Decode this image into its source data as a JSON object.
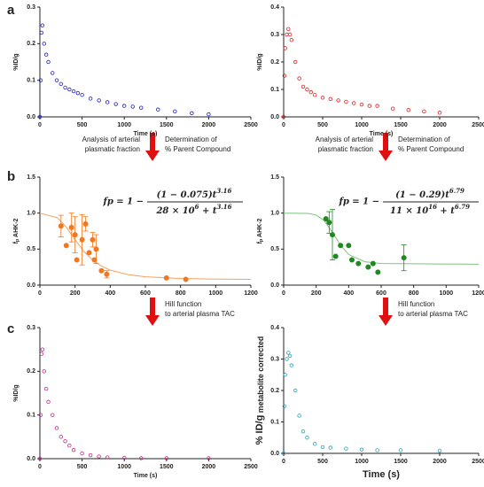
{
  "panel_labels": [
    "a",
    "b",
    "c"
  ],
  "arrows": [
    {
      "left": [
        "Analysis of arterial",
        "plasmatic fraction"
      ],
      "right": [
        "Determination of",
        "% Parent Compound"
      ]
    },
    {
      "left": [
        "Analysis of arterial",
        "plasmatic fraction"
      ],
      "right": [
        "Determination of",
        "% Parent Compound"
      ]
    },
    {
      "right": [
        "Hill function",
        "to arterial plasma TAC"
      ]
    },
    {
      "right": [
        "Hill function",
        "to arterial plasma TAC"
      ]
    }
  ],
  "chart_data": [
    {
      "type": "scatter",
      "xlabel": "Time (s)",
      "ylabel": "%ID/g",
      "xlim": [
        0,
        2500
      ],
      "xticks": [
        0,
        500,
        1000,
        1500,
        2000,
        2500
      ],
      "ylim": [
        0,
        0.3
      ],
      "yticks": [
        {
          "value": 0,
          "label": "0.0"
        },
        0.1,
        0.2,
        0.3
      ],
      "series": [
        {
          "color": "#1f1fbf",
          "marker": "open",
          "kind": "points",
          "x": [
            0,
            10,
            20,
            30,
            50,
            75,
            100,
            150,
            200,
            250,
            300,
            350,
            400,
            450,
            500,
            600,
            700,
            800,
            900,
            1000,
            1100,
            1200,
            1400,
            1600,
            1800,
            2000
          ],
          "values": [
            0,
            0.1,
            0.23,
            0.25,
            0.2,
            0.17,
            0.15,
            0.12,
            0.1,
            0.09,
            0.08,
            0.075,
            0.07,
            0.065,
            0.06,
            0.05,
            0.045,
            0.04,
            0.035,
            0.03,
            0.028,
            0.025,
            0.02,
            0.015,
            0.01,
            0.007
          ]
        }
      ]
    },
    {
      "type": "scatter",
      "xlabel": "Time (s)",
      "ylabel": "%ID/g",
      "xlim": [
        0,
        2500
      ],
      "xticks": [
        0,
        500,
        1000,
        1500,
        2000,
        2500
      ],
      "ylim": [
        0,
        0.4
      ],
      "yticks": [
        {
          "value": 0,
          "label": "0.0"
        },
        0.1,
        0.2,
        0.3,
        0.4
      ],
      "series": [
        {
          "color": "#e02020",
          "marker": "open",
          "kind": "points",
          "x": [
            0,
            10,
            20,
            40,
            60,
            80,
            100,
            150,
            200,
            250,
            300,
            350,
            400,
            500,
            600,
            700,
            800,
            900,
            1000,
            1100,
            1200,
            1400,
            1600,
            1800,
            2000
          ],
          "values": [
            0,
            0.15,
            0.25,
            0.3,
            0.32,
            0.3,
            0.28,
            0.2,
            0.14,
            0.11,
            0.1,
            0.09,
            0.08,
            0.07,
            0.065,
            0.06,
            0.055,
            0.05,
            0.045,
            0.04,
            0.04,
            0.03,
            0.025,
            0.02,
            0.015
          ]
        }
      ]
    },
    {
      "type": "scatter",
      "ylabel": [
        {
          "text": "f"
        },
        {
          "text": "p",
          "sub": true
        },
        {
          "text": " AHK-2"
        }
      ],
      "xlim": [
        0,
        1200
      ],
      "xticks": [
        0,
        200,
        400,
        600,
        800,
        1000,
        1200
      ],
      "ylim": [
        0,
        1.5
      ],
      "yticks": [
        {
          "value": 0,
          "label": "0.0"
        },
        0.5,
        {
          "value": 1,
          "label": "1.0"
        },
        1.5
      ],
      "formula": {
        "lhs": "fp = 1 −",
        "numerator": [
          {
            "text": "(1 − 0.075)t"
          },
          {
            "text": "3.16",
            "sup": true
          }
        ],
        "denominator": [
          {
            "text": "28 × 10"
          },
          {
            "text": "6",
            "sup": true
          },
          {
            "text": " + t"
          },
          {
            "text": "3.16",
            "sup": true
          }
        ]
      },
      "series": [
        {
          "color": "#f5a05a",
          "kind": "line",
          "x": [
            0,
            100,
            150,
            200,
            250,
            300,
            350,
            400,
            500,
            600,
            800,
            1000,
            1200
          ],
          "values": [
            1,
            0.936,
            0.805,
            0.63,
            0.469,
            0.347,
            0.264,
            0.208,
            0.146,
            0.116,
            0.092,
            0.083,
            0.08
          ]
        },
        {
          "color": "#f07820",
          "marker": "filled",
          "kind": "points",
          "x": [
            120,
            150,
            180,
            200,
            210,
            240,
            260,
            280,
            300,
            310,
            320,
            350,
            380,
            720,
            830
          ],
          "values": [
            0.82,
            0.55,
            0.8,
            0.7,
            0.35,
            0.63,
            0.85,
            0.45,
            0.63,
            0.35,
            0.5,
            0.2,
            0.15,
            0.1,
            0.08
          ],
          "errors": [
            0.15,
            null,
            0.2,
            0.25,
            null,
            0.35,
            0.1,
            null,
            0.1,
            null,
            0.2,
            null,
            0.05,
            null,
            null
          ]
        }
      ]
    },
    {
      "type": "scatter",
      "ylabel": [
        {
          "text": "f"
        },
        {
          "text": "p",
          "sub": true
        },
        {
          "text": " AHK-2"
        }
      ],
      "xlim": [
        0,
        1200
      ],
      "xticks": [
        0,
        200,
        400,
        600,
        800,
        1000,
        1200
      ],
      "ylim": [
        0,
        1.5
      ],
      "yticks": [
        {
          "value": 0,
          "label": "0.0"
        },
        0.5,
        {
          "value": 1,
          "label": "1.0"
        },
        1.5
      ],
      "formula": {
        "lhs": "fp = 1 −",
        "numerator": [
          {
            "text": "(1 − 0.29)t"
          },
          {
            "text": "6.79",
            "sup": true
          }
        ],
        "denominator": [
          {
            "text": "11 × 10"
          },
          {
            "text": "16",
            "sup": true
          },
          {
            "text": " + t"
          },
          {
            "text": "6.79",
            "sup": true
          }
        ]
      },
      "series": [
        {
          "color": "#7cc47c",
          "kind": "line",
          "x": [
            0,
            150,
            200,
            250,
            300,
            350,
            400,
            500,
            600,
            800,
            1200
          ],
          "values": [
            1,
            0.996,
            0.974,
            0.895,
            0.734,
            0.553,
            0.425,
            0.325,
            0.3,
            0.296,
            0.29
          ]
        },
        {
          "color": "#1f8a1f",
          "marker": "filled",
          "kind": "points",
          "x": [
            260,
            280,
            300,
            320,
            350,
            400,
            420,
            460,
            520,
            550,
            580,
            740
          ],
          "values": [
            0.92,
            0.87,
            0.7,
            0.4,
            0.55,
            0.55,
            0.35,
            0.3,
            0.25,
            0.3,
            0.18,
            0.38
          ],
          "errors": [
            null,
            0.15,
            0.35,
            null,
            null,
            null,
            null,
            null,
            null,
            null,
            null,
            0.18
          ]
        }
      ]
    },
    {
      "type": "scatter",
      "xlabel": "Time (s)",
      "ylabel": "%ID/g",
      "xlim": [
        0,
        2500
      ],
      "xticks": [
        0,
        500,
        1000,
        1500,
        2000,
        2500
      ],
      "ylim": [
        0,
        0.3
      ],
      "yticks": [
        {
          "value": 0,
          "label": "0.0"
        },
        0.1,
        0.2,
        0.3
      ],
      "series": [
        {
          "color": "#c0288a",
          "marker": "open",
          "kind": "points",
          "x": [
            0,
            10,
            20,
            30,
            50,
            75,
            100,
            150,
            200,
            250,
            300,
            350,
            400,
            500,
            600,
            700,
            800,
            1000,
            1200,
            1500,
            2000
          ],
          "values": [
            0,
            0.1,
            0.24,
            0.25,
            0.2,
            0.16,
            0.13,
            0.1,
            0.07,
            0.05,
            0.04,
            0.03,
            0.02,
            0.012,
            0.008,
            0.005,
            0.003,
            0.002,
            0.001,
            0.001,
            0.001
          ]
        }
      ]
    },
    {
      "type": "scatter",
      "xlabel": "Time (s)",
      "ylabel": [
        {
          "text": "% ID/g"
        },
        {
          "text": " metabolite corrected",
          "sub": true
        }
      ],
      "xlim": [
        0,
        2500
      ],
      "xticks": [
        0,
        500,
        1000,
        1500,
        2000,
        2500
      ],
      "ylim": [
        0,
        0.4
      ],
      "yticks": [
        {
          "value": 0,
          "label": "0.0"
        },
        0.1,
        0.2,
        0.3,
        0.4
      ],
      "series": [
        {
          "color": "#2ea3b8",
          "marker": "open",
          "kind": "points",
          "x": [
            0,
            10,
            20,
            40,
            60,
            80,
            100,
            150,
            200,
            250,
            300,
            400,
            500,
            600,
            800,
            1000,
            1200,
            1500,
            2000
          ],
          "values": [
            0,
            0.15,
            0.25,
            0.3,
            0.32,
            0.31,
            0.28,
            0.2,
            0.12,
            0.07,
            0.05,
            0.03,
            0.02,
            0.018,
            0.015,
            0.012,
            0.01,
            0.01,
            0.008
          ]
        }
      ]
    }
  ]
}
